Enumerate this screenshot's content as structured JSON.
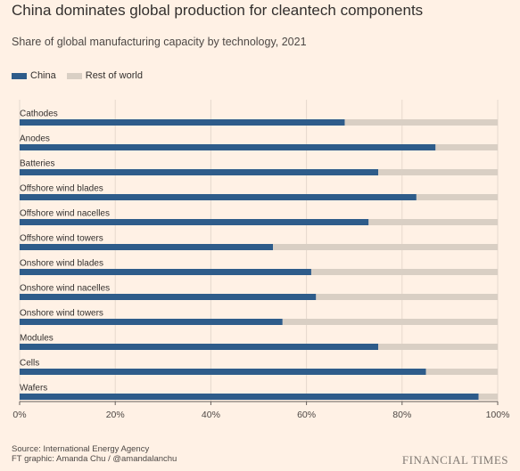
{
  "title": "China dominates global production for cleantech components",
  "subtitle": "Share of global manufacturing capacity by technology, 2021",
  "legend": [
    {
      "label": "China",
      "color": "#2e5c8a"
    },
    {
      "label": "Rest of world",
      "color": "#d9cfc4"
    }
  ],
  "chart_data": {
    "type": "bar",
    "orientation": "horizontal",
    "stacked": true,
    "categories": [
      "Cathodes",
      "Anodes",
      "Batteries",
      "Offshore wind blades",
      "Offshore wind nacelles",
      "Offshore wind towers",
      "Onshore wind blades",
      "Onshore wind nacelles",
      "Onshore wind towers",
      "Modules",
      "Cells",
      "Wafers"
    ],
    "series": [
      {
        "name": "China",
        "color": "#2e5c8a",
        "values": [
          68,
          87,
          75,
          83,
          73,
          53,
          61,
          62,
          55,
          75,
          85,
          96
        ]
      },
      {
        "name": "Rest of world",
        "color": "#d9cfc4",
        "values": [
          32,
          13,
          25,
          17,
          27,
          47,
          39,
          38,
          45,
          25,
          15,
          4
        ]
      }
    ],
    "xlim": [
      0,
      100
    ],
    "xticks": [
      "0%",
      "20%",
      "40%",
      "60%",
      "80%",
      "100%"
    ],
    "grid": true,
    "legend_position": "top-left"
  },
  "source": {
    "line1": "Source: International Energy Agency",
    "line2": "FT graphic: Amanda Chu / @amandalanchu"
  },
  "brand": "FINANCIAL TIMES"
}
